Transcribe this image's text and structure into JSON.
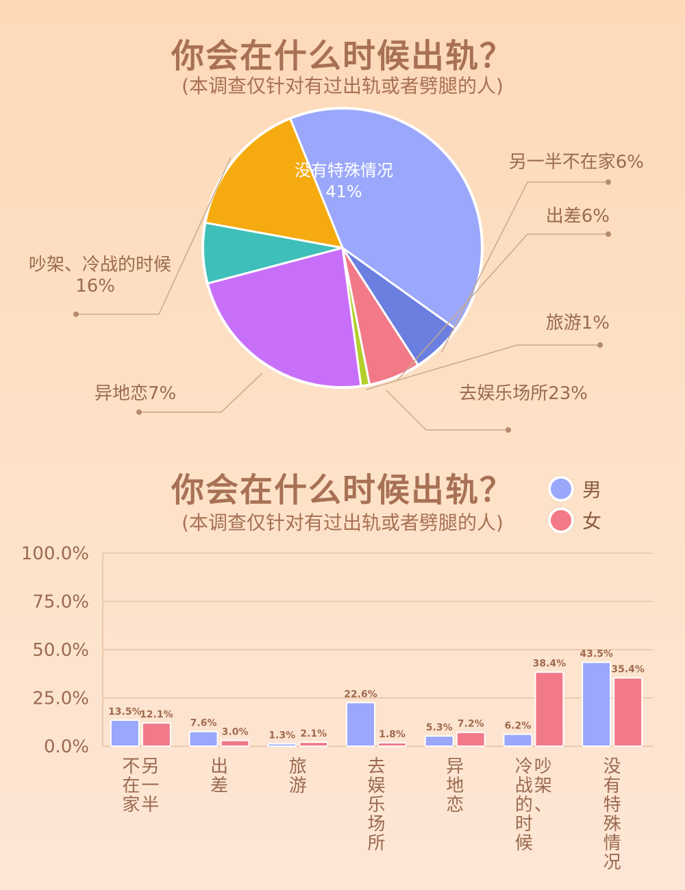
{
  "colors": {
    "title": "#a87155",
    "label": "#9a6a50",
    "leader": "#c7a88e",
    "grid": "#e5c2a4",
    "male": "#9aa7fb",
    "female": "#f27a88",
    "bar_value": "#a06a50"
  },
  "section1": {
    "title": "你会在什么时候出轨？",
    "subtitle": "(本调查仅针对有过出轨或者劈腿的人)"
  },
  "section2": {
    "title": "你会在什么时候出轨？",
    "subtitle": "(本调查仅针对有过出轨或者劈腿的人)",
    "legend": [
      {
        "label": "男",
        "color": "#9aa7fb"
      },
      {
        "label": "女",
        "color": "#f27a88"
      }
    ]
  },
  "chart_data": [
    {
      "type": "pie",
      "slices": [
        {
          "label": "没有特殊情况",
          "value": 41,
          "value_text": "41%",
          "color": "#9aa7fb",
          "display": [
            "没有特殊情况",
            "41%"
          ]
        },
        {
          "label": "另一半不在家",
          "value": 6,
          "value_text": "6%",
          "color": "#6b7fe0",
          "display": [
            "另一半不在家6%"
          ]
        },
        {
          "label": "出差",
          "value": 6,
          "value_text": "6%",
          "color": "#f27a88",
          "display": [
            "出差6%"
          ]
        },
        {
          "label": "旅游",
          "value": 1,
          "value_text": "1%",
          "color": "#b3cf2c",
          "display": [
            "旅游1%"
          ]
        },
        {
          "label": "去娱乐场所",
          "value": 23,
          "value_text": "23%",
          "color": "#c86ffa",
          "display": [
            "去娱乐场所23%"
          ]
        },
        {
          "label": "异地恋",
          "value": 7,
          "value_text": "7%",
          "color": "#3fbfb9",
          "display": [
            "异地恋7%"
          ]
        },
        {
          "label": "吵架、冷战的时候",
          "value": 16,
          "value_text": "16%",
          "color": "#f5ab10",
          "display": [
            "吵架、冷战的时候",
            "16%"
          ]
        }
      ]
    },
    {
      "type": "bar",
      "categories": [
        "另一半不在家",
        "出差",
        "旅游",
        "去娱乐场所",
        "异地恋",
        "吵架、冷战的时候",
        "没有特殊情况"
      ],
      "category_display": [
        [
          "另一半",
          "不在家"
        ],
        [
          "出差"
        ],
        [
          "旅游"
        ],
        [
          "去娱乐场所"
        ],
        [
          "异地恋"
        ],
        [
          "吵架、",
          "冷战的时候"
        ],
        [
          "没有特殊情况"
        ]
      ],
      "series": [
        {
          "name": "男",
          "values": [
            13.5,
            7.6,
            1.3,
            22.6,
            5.3,
            6.2,
            43.5
          ],
          "labels": [
            "13.5%",
            "7.6%",
            "1.3%",
            "22.6%",
            "5.3%",
            "6.2%",
            "43.5%"
          ]
        },
        {
          "name": "女",
          "values": [
            12.1,
            3.0,
            2.1,
            1.8,
            7.2,
            38.4,
            35.4
          ],
          "labels": [
            "12.1%",
            "3.0%",
            "2.1%",
            "1.8%",
            "7.2%",
            "38.4%",
            "35.4%"
          ]
        }
      ],
      "ylim": [
        0,
        100
      ],
      "yticks": [
        "0.0%",
        "25.0%",
        "50.0%",
        "75.0%",
        "100.0%"
      ],
      "ytick_values": [
        0,
        25,
        50,
        75,
        100
      ],
      "grid": true
    }
  ]
}
